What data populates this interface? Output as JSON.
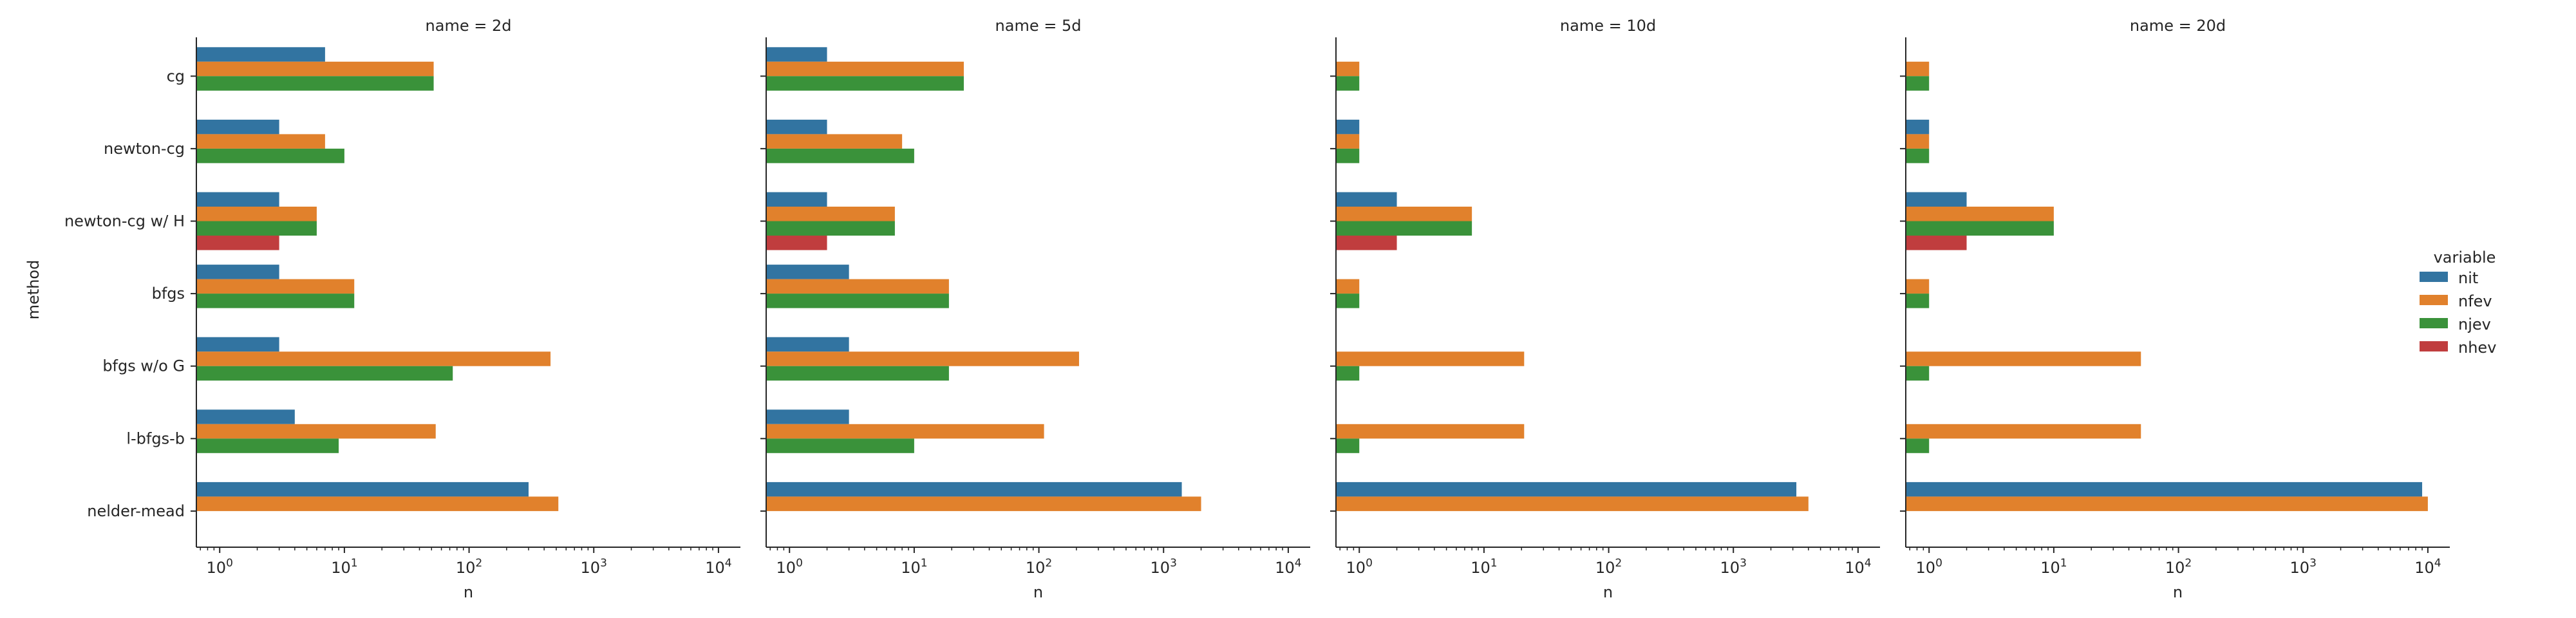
{
  "figure": {
    "ylabel": "method",
    "legend": {
      "title": "variable",
      "placement": "right",
      "entries": [
        {
          "name": "nit",
          "color": "#3274a1"
        },
        {
          "name": "nfev",
          "color": "#e1812c"
        },
        {
          "name": "njev",
          "color": "#3a923a"
        },
        {
          "name": "nhev",
          "color": "#c03d3e"
        }
      ]
    }
  },
  "chart_data": [
    {
      "type": "bar",
      "orientation": "horizontal",
      "title": "name = 2d",
      "xlabel": "n",
      "xscale": "log",
      "xlim": [
        0.65,
        15000
      ],
      "xticks": [
        {
          "value": 1,
          "base": "10",
          "exp": "0"
        },
        {
          "value": 10,
          "base": "10",
          "exp": "1"
        },
        {
          "value": 100,
          "base": "10",
          "exp": "2"
        },
        {
          "value": 1000,
          "base": "10",
          "exp": "3"
        },
        {
          "value": 10000,
          "base": "10",
          "exp": "4"
        }
      ],
      "categories": [
        "cg",
        "newton-cg",
        "newton-cg w/ H",
        "bfgs",
        "bfgs w/o G",
        "l-bfgs-b",
        "nelder-mead"
      ],
      "series": [
        {
          "name": "nit",
          "values": [
            7,
            3,
            3,
            3,
            3,
            4,
            300
          ]
        },
        {
          "name": "nfev",
          "values": [
            52,
            7,
            6,
            12,
            450,
            54,
            520
          ]
        },
        {
          "name": "njev",
          "values": [
            52,
            10,
            6,
            12,
            74,
            9,
            null
          ]
        },
        {
          "name": "nhev",
          "values": [
            null,
            null,
            3,
            null,
            null,
            null,
            null
          ]
        }
      ]
    },
    {
      "type": "bar",
      "orientation": "horizontal",
      "title": "name = 5d",
      "xlabel": "n",
      "xscale": "log",
      "xlim": [
        0.65,
        15000
      ],
      "xticks": [
        {
          "value": 1,
          "base": "10",
          "exp": "0"
        },
        {
          "value": 10,
          "base": "10",
          "exp": "1"
        },
        {
          "value": 100,
          "base": "10",
          "exp": "2"
        },
        {
          "value": 1000,
          "base": "10",
          "exp": "3"
        },
        {
          "value": 10000,
          "base": "10",
          "exp": "4"
        }
      ],
      "categories": [
        "cg",
        "newton-cg",
        "newton-cg w/ H",
        "bfgs",
        "bfgs w/o G",
        "l-bfgs-b",
        "nelder-mead"
      ],
      "series": [
        {
          "name": "nit",
          "values": [
            2,
            2,
            2,
            3,
            3,
            3,
            1400
          ]
        },
        {
          "name": "nfev",
          "values": [
            25,
            8,
            7,
            19,
            210,
            110,
            2000
          ]
        },
        {
          "name": "njev",
          "values": [
            25,
            10,
            7,
            19,
            19,
            10,
            null
          ]
        },
        {
          "name": "nhev",
          "values": [
            null,
            null,
            2,
            null,
            null,
            null,
            null
          ]
        }
      ]
    },
    {
      "type": "bar",
      "orientation": "horizontal",
      "title": "name = 10d",
      "xlabel": "n",
      "xscale": "log",
      "xlim": [
        0.65,
        15000
      ],
      "xticks": [
        {
          "value": 1,
          "base": "10",
          "exp": "0"
        },
        {
          "value": 10,
          "base": "10",
          "exp": "1"
        },
        {
          "value": 100,
          "base": "10",
          "exp": "2"
        },
        {
          "value": 1000,
          "base": "10",
          "exp": "3"
        },
        {
          "value": 10000,
          "base": "10",
          "exp": "4"
        }
      ],
      "categories": [
        "cg",
        "newton-cg",
        "newton-cg w/ H",
        "bfgs",
        "bfgs w/o G",
        "l-bfgs-b",
        "nelder-mead"
      ],
      "series": [
        {
          "name": "nit",
          "values": [
            0,
            1,
            2,
            0,
            0,
            0,
            3200
          ]
        },
        {
          "name": "nfev",
          "values": [
            1,
            1,
            8,
            1,
            21,
            21,
            4000
          ]
        },
        {
          "name": "njev",
          "values": [
            1,
            1,
            8,
            1,
            1,
            1,
            null
          ]
        },
        {
          "name": "nhev",
          "values": [
            null,
            null,
            2,
            null,
            null,
            null,
            null
          ]
        }
      ]
    },
    {
      "type": "bar",
      "orientation": "horizontal",
      "title": "name = 20d",
      "xlabel": "n",
      "xscale": "log",
      "xlim": [
        0.65,
        15000
      ],
      "xticks": [
        {
          "value": 1,
          "base": "10",
          "exp": "0"
        },
        {
          "value": 10,
          "base": "10",
          "exp": "1"
        },
        {
          "value": 100,
          "base": "10",
          "exp": "2"
        },
        {
          "value": 1000,
          "base": "10",
          "exp": "3"
        },
        {
          "value": 10000,
          "base": "10",
          "exp": "4"
        }
      ],
      "categories": [
        "cg",
        "newton-cg",
        "newton-cg w/ H",
        "bfgs",
        "bfgs w/o G",
        "l-bfgs-b",
        "nelder-mead"
      ],
      "series": [
        {
          "name": "nit",
          "values": [
            0,
            1,
            2,
            0,
            0,
            0,
            9000
          ]
        },
        {
          "name": "nfev",
          "values": [
            1,
            1,
            10,
            1,
            50,
            50,
            10000
          ]
        },
        {
          "name": "njev",
          "values": [
            1,
            1,
            10,
            1,
            1,
            1,
            null
          ]
        },
        {
          "name": "nhev",
          "values": [
            null,
            null,
            2,
            null,
            null,
            null,
            null
          ]
        }
      ]
    }
  ]
}
